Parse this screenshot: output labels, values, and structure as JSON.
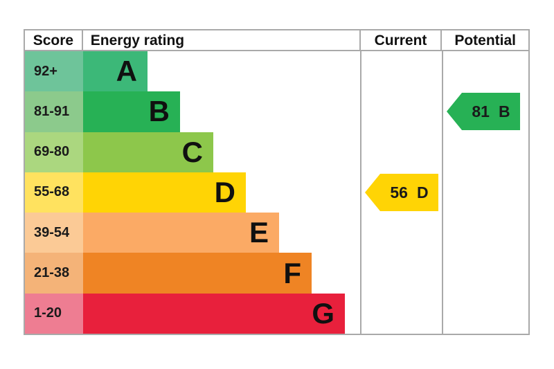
{
  "chart_data": {
    "type": "bar",
    "title": "EPC energy efficiency rating chart",
    "columns": [
      "Score",
      "Energy rating",
      "Current",
      "Potential"
    ],
    "bands": [
      {
        "band": "A",
        "score_range": "92+",
        "color": "#3cb878",
        "tint": "#6ec49a"
      },
      {
        "band": "B",
        "score_range": "81-91",
        "color": "#27b155",
        "tint": "#8cca8c"
      },
      {
        "band": "C",
        "score_range": "69-80",
        "color": "#8dc74b",
        "tint": "#abd77f"
      },
      {
        "band": "D",
        "score_range": "55-68",
        "color": "#ffd405",
        "tint": "#ffe25f"
      },
      {
        "band": "E",
        "score_range": "39-54",
        "color": "#fbaa65",
        "tint": "#fbca96"
      },
      {
        "band": "F",
        "score_range": "21-38",
        "color": "#ef8424",
        "tint": "#f4b378"
      },
      {
        "band": "G",
        "score_range": "1-20",
        "color": "#e8203c",
        "tint": "#ee7d92"
      }
    ],
    "current": {
      "score": 56,
      "band": "D",
      "band_index": 3,
      "arrow_color": "#ffd405"
    },
    "potential": {
      "score": 81,
      "band": "B",
      "band_index": 1,
      "arrow_color": "#27b155"
    },
    "layout": {
      "legend": "none",
      "grid": false,
      "border_color": "#a9a9a9"
    }
  }
}
